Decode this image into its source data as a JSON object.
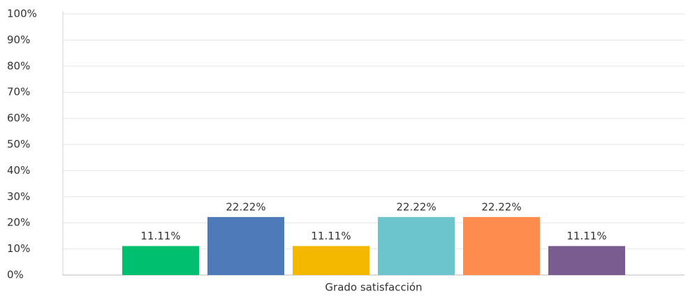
{
  "chart_data": {
    "type": "bar",
    "categories": [
      "Grado satisfacción"
    ],
    "series": [
      {
        "color": "#00bf6f",
        "values": [
          11.11
        ],
        "value_labels": [
          "11.11%"
        ]
      },
      {
        "color": "#4f7aba",
        "values": [
          22.22
        ],
        "value_labels": [
          "22.22%"
        ]
      },
      {
        "color": "#f5b800",
        "values": [
          11.11
        ],
        "value_labels": [
          "11.11%"
        ]
      },
      {
        "color": "#6cc5cc",
        "values": [
          22.22
        ],
        "value_labels": [
          "22.22%"
        ]
      },
      {
        "color": "#ff8c4f",
        "values": [
          22.22
        ],
        "value_labels": [
          "22.22%"
        ]
      },
      {
        "color": "#7b5c91",
        "values": [
          11.11
        ],
        "value_labels": [
          "11.11%"
        ]
      }
    ],
    "ylim": [
      0,
      100
    ],
    "yticks": [
      {
        "value": 0,
        "label": "0%"
      },
      {
        "value": 10,
        "label": "10%"
      },
      {
        "value": 20,
        "label": "20%"
      },
      {
        "value": 30,
        "label": "30%"
      },
      {
        "value": 40,
        "label": "40%"
      },
      {
        "value": 50,
        "label": "50%"
      },
      {
        "value": 60,
        "label": "60%"
      },
      {
        "value": 70,
        "label": "70%"
      },
      {
        "value": 80,
        "label": "80%"
      },
      {
        "value": 90,
        "label": "90%"
      },
      {
        "value": 100,
        "label": "100%"
      }
    ],
    "grid": true
  }
}
